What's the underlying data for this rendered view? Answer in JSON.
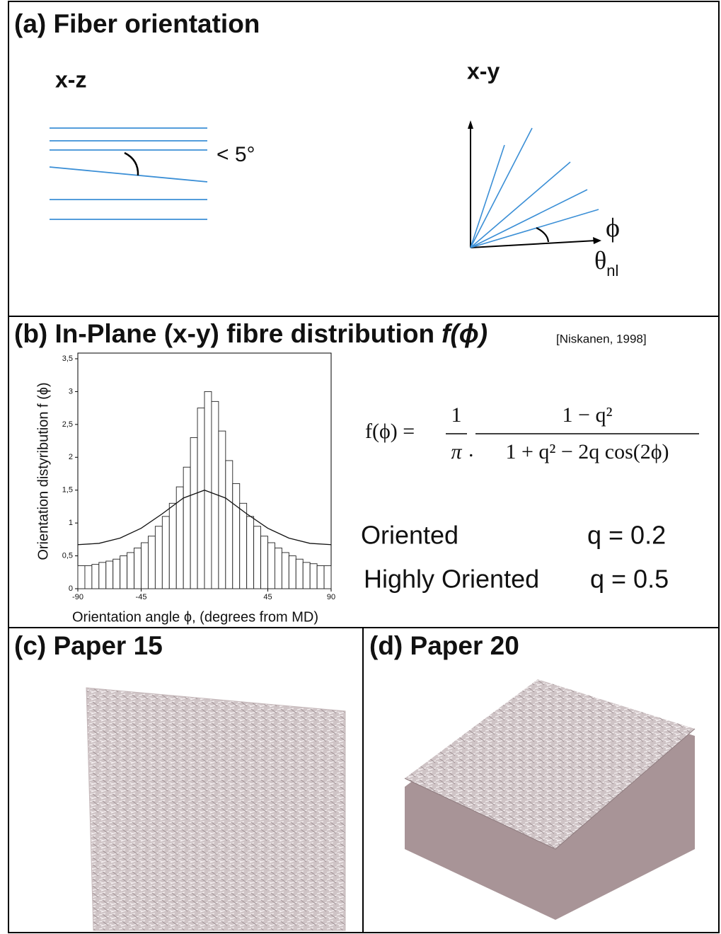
{
  "panel_a": {
    "title": "(a) Fiber orientation",
    "xz_label": "x-z",
    "angle_label": "< 5°",
    "xy_label": "x-y",
    "phi_label": "ϕ",
    "theta_label": "θ",
    "theta_subscript": "nl"
  },
  "panel_b": {
    "title": "(b) In-Plane (x-y) fibre distribution",
    "title_func": "f(ϕ)",
    "citation": "[Niskanen, 1998]",
    "chart": {
      "type": "histogram",
      "xlabel": "Orientation angle ϕ, (degrees from MD)",
      "ylabel": "Orientation distyribution f (ϕ)",
      "bins": [
        -90,
        -85,
        -80,
        -75,
        -70,
        -65,
        -60,
        -55,
        -50,
        -45,
        -40,
        -35,
        -30,
        -25,
        -20,
        -15,
        -10,
        -5,
        0,
        5,
        10,
        15,
        20,
        25,
        30,
        35,
        40,
        45,
        50,
        55,
        60,
        65,
        70,
        75,
        80,
        85,
        90
      ],
      "values": [
        0.35,
        0.35,
        0.37,
        0.4,
        0.42,
        0.45,
        0.5,
        0.55,
        0.62,
        0.7,
        0.8,
        0.95,
        1.1,
        1.3,
        1.55,
        1.85,
        2.3,
        2.75,
        3.0,
        2.85,
        2.4,
        1.95,
        1.6,
        1.3,
        1.1,
        0.95,
        0.8,
        0.7,
        0.62,
        0.55,
        0.5,
        0.45,
        0.4,
        0.38,
        0.35,
        0.35
      ],
      "curve": {
        "x": [
          -90,
          -75,
          -60,
          -45,
          -30,
          -15,
          0,
          15,
          30,
          45,
          60,
          75,
          90
        ],
        "values": [
          0.67,
          0.69,
          0.77,
          0.92,
          1.14,
          1.38,
          1.5,
          1.38,
          1.14,
          0.92,
          0.77,
          0.69,
          0.67
        ]
      },
      "xlim": [
        -90,
        90
      ],
      "ylim": [
        0,
        3.5
      ],
      "xticks": [
        -90,
        -45,
        45,
        90
      ],
      "yticks": [
        0,
        {
          "value": 0.5,
          "label": "0,5"
        },
        1,
        {
          "value": 1.5,
          "label": "1,5"
        },
        2,
        {
          "value": 2.5,
          "label": "2,5"
        },
        3,
        {
          "value": 3.5,
          "label": "3,5"
        }
      ]
    },
    "formula": {
      "lhs": "f(ϕ) =",
      "num1": "1",
      "den1": "π",
      "dot": ".",
      "num2": "1 −  q²",
      "den2": "1 + q² − 2q cos(2ϕ)"
    },
    "rows": [
      {
        "label": "Oriented",
        "q": "q = 0.2"
      },
      {
        "label": "Highly Oriented",
        "q": "q = 0.5"
      }
    ]
  },
  "panel_c": {
    "title": "(c) Paper 15"
  },
  "panel_d": {
    "title": "(d) Paper 20"
  }
}
